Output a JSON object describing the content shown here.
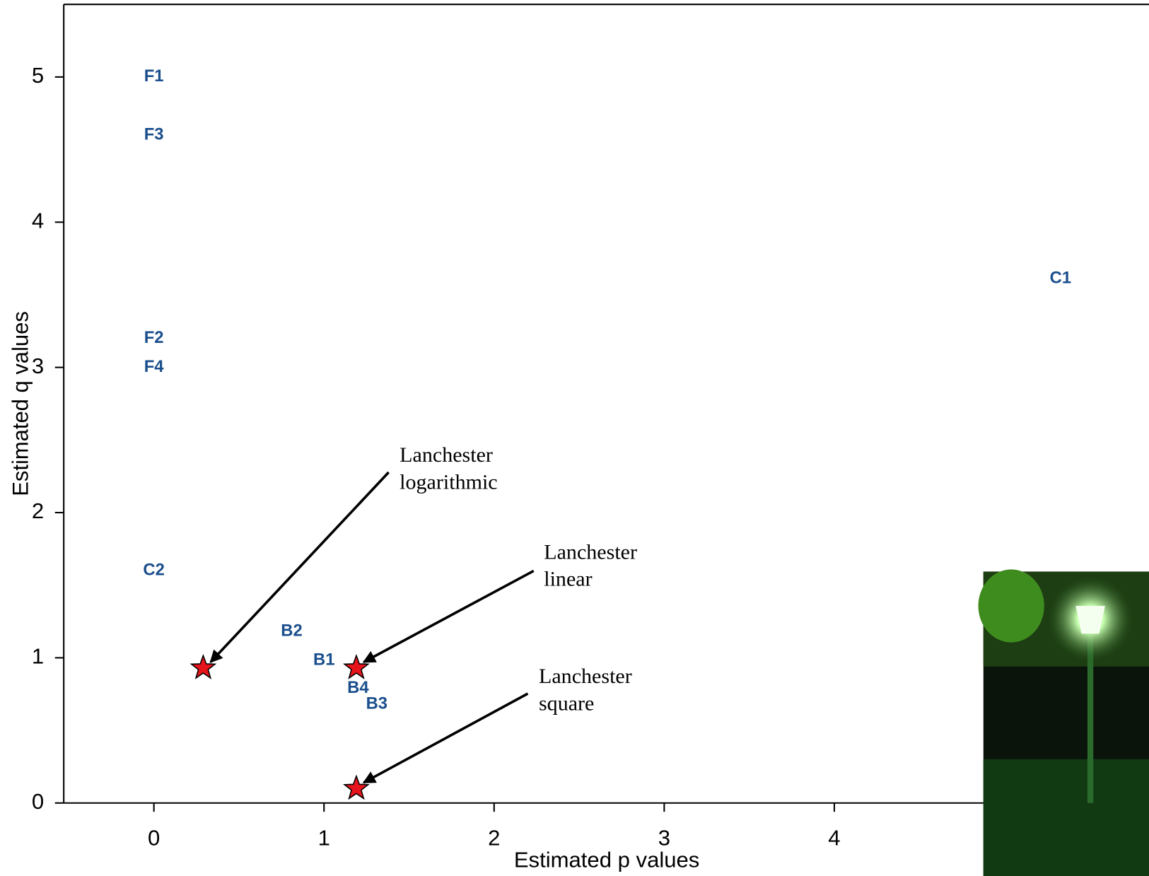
{
  "chart_data": {
    "type": "scatter",
    "xlabel": "Estimated p values",
    "ylabel": "Estimated q values",
    "xlim": [
      -0.53,
      5.85
    ],
    "ylim": [
      0,
      5.5
    ],
    "xticks": [
      0,
      1,
      2,
      3,
      4
    ],
    "yticks": [
      0,
      1,
      2,
      3,
      4,
      5
    ],
    "points": {
      "color": "#1a4e8c",
      "labels": [
        "F1",
        "F3",
        "F2",
        "F4",
        "C2",
        "C1",
        "B2",
        "B1",
        "B4",
        "B3"
      ],
      "x": [
        0,
        0,
        0,
        0,
        0,
        5.33,
        0.81,
        1.0,
        1.2,
        1.31
      ],
      "y": [
        5.0,
        4.6,
        3.2,
        3.0,
        1.6,
        3.61,
        1.18,
        0.98,
        0.79,
        0.68
      ]
    },
    "markers": {
      "color": "#e8141c",
      "x": [
        0.29,
        1.19,
        1.19
      ],
      "y": [
        0.93,
        0.93,
        0.1
      ],
      "annotations": [
        [
          "Lanchester",
          "logarithmic"
        ],
        [
          "Lanchester",
          "linear"
        ],
        [
          "Lanchester",
          "square"
        ]
      ]
    }
  }
}
